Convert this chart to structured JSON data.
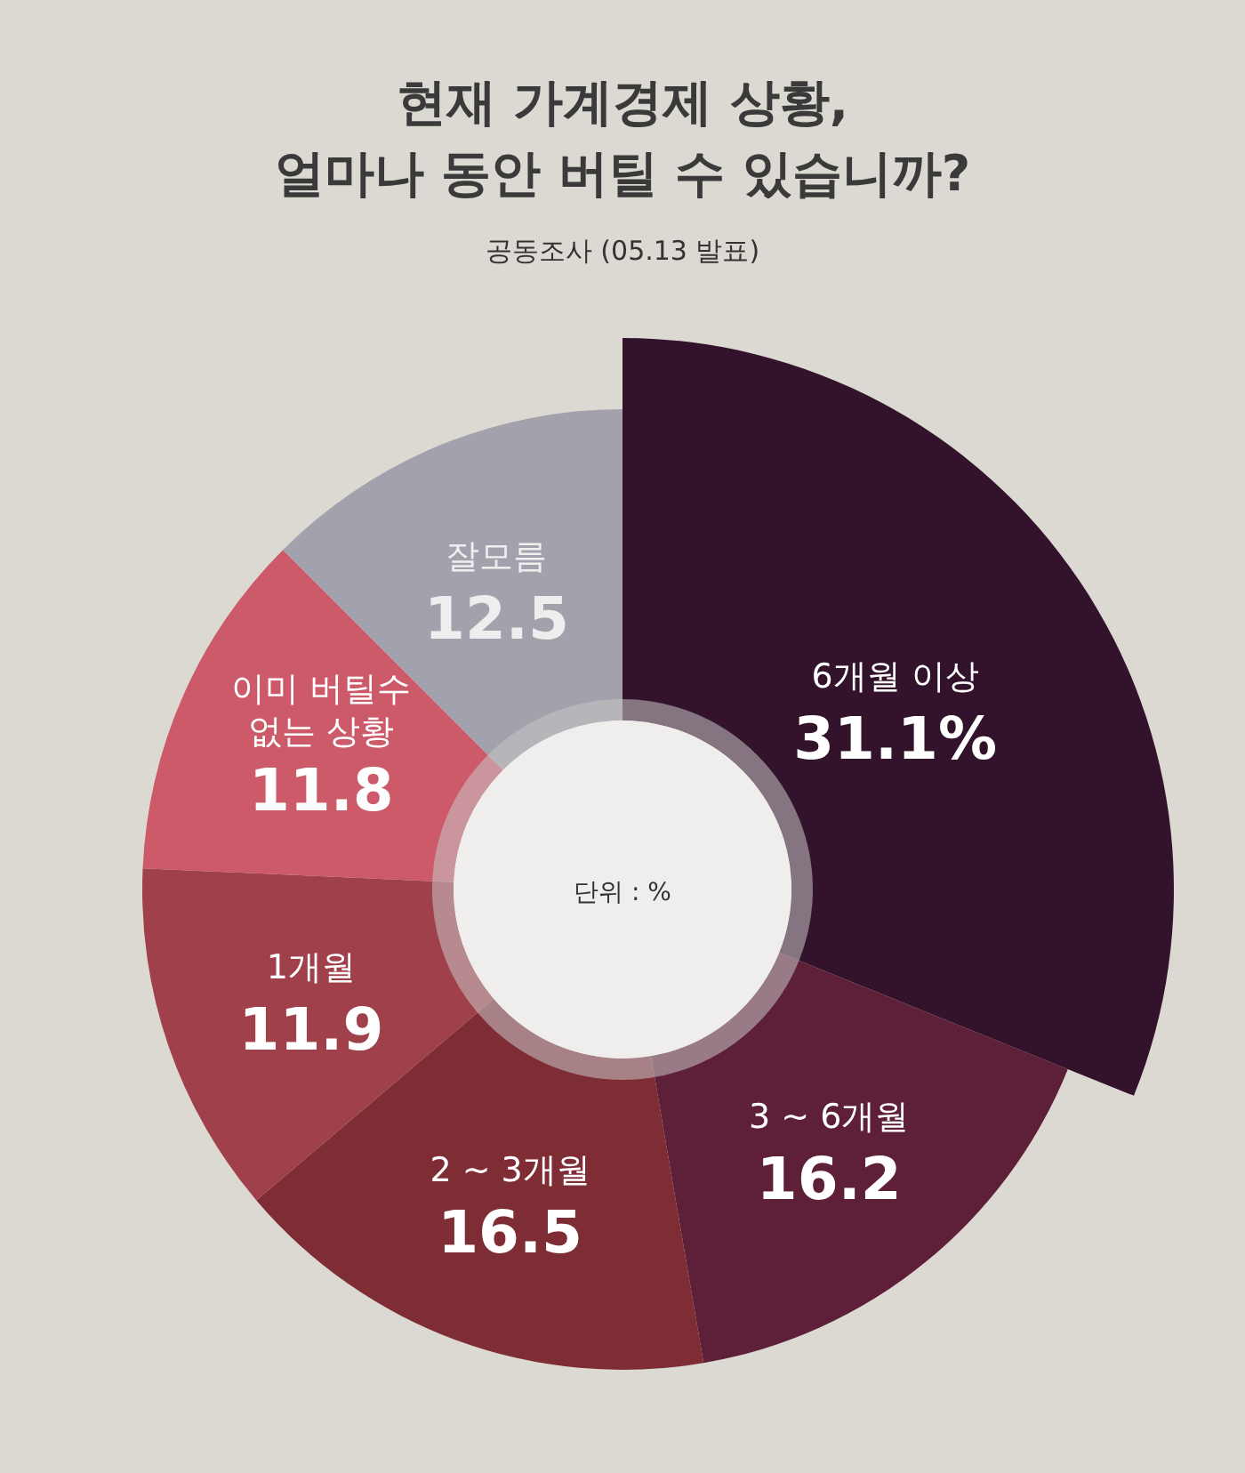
{
  "chart_data": {
    "type": "donut",
    "title": "현재 가계경제 상황, 얼마나 동안 버틸 수 있습니까?",
    "subtitle": "공동조사 (05.13 발표)",
    "categories": [
      "6개월 이상",
      "3 ~ 6개월",
      "2 ~ 3개월",
      "1개월",
      "이미 버틸수 없는 상황",
      "잘모름"
    ],
    "values": [
      31.1,
      16.2,
      16.5,
      11.9,
      11.8,
      12.5
    ],
    "value_labels": [
      "31.1%",
      "16.2",
      "16.5",
      "11.9",
      "11.8",
      "12.5"
    ],
    "colors": [
      "#33132b",
      "#5e1f38",
      "#7e2d35",
      "#a0404a",
      "#cc5a68",
      "#a3a1ab"
    ],
    "annotations": [
      "단위 : %"
    ]
  }
}
